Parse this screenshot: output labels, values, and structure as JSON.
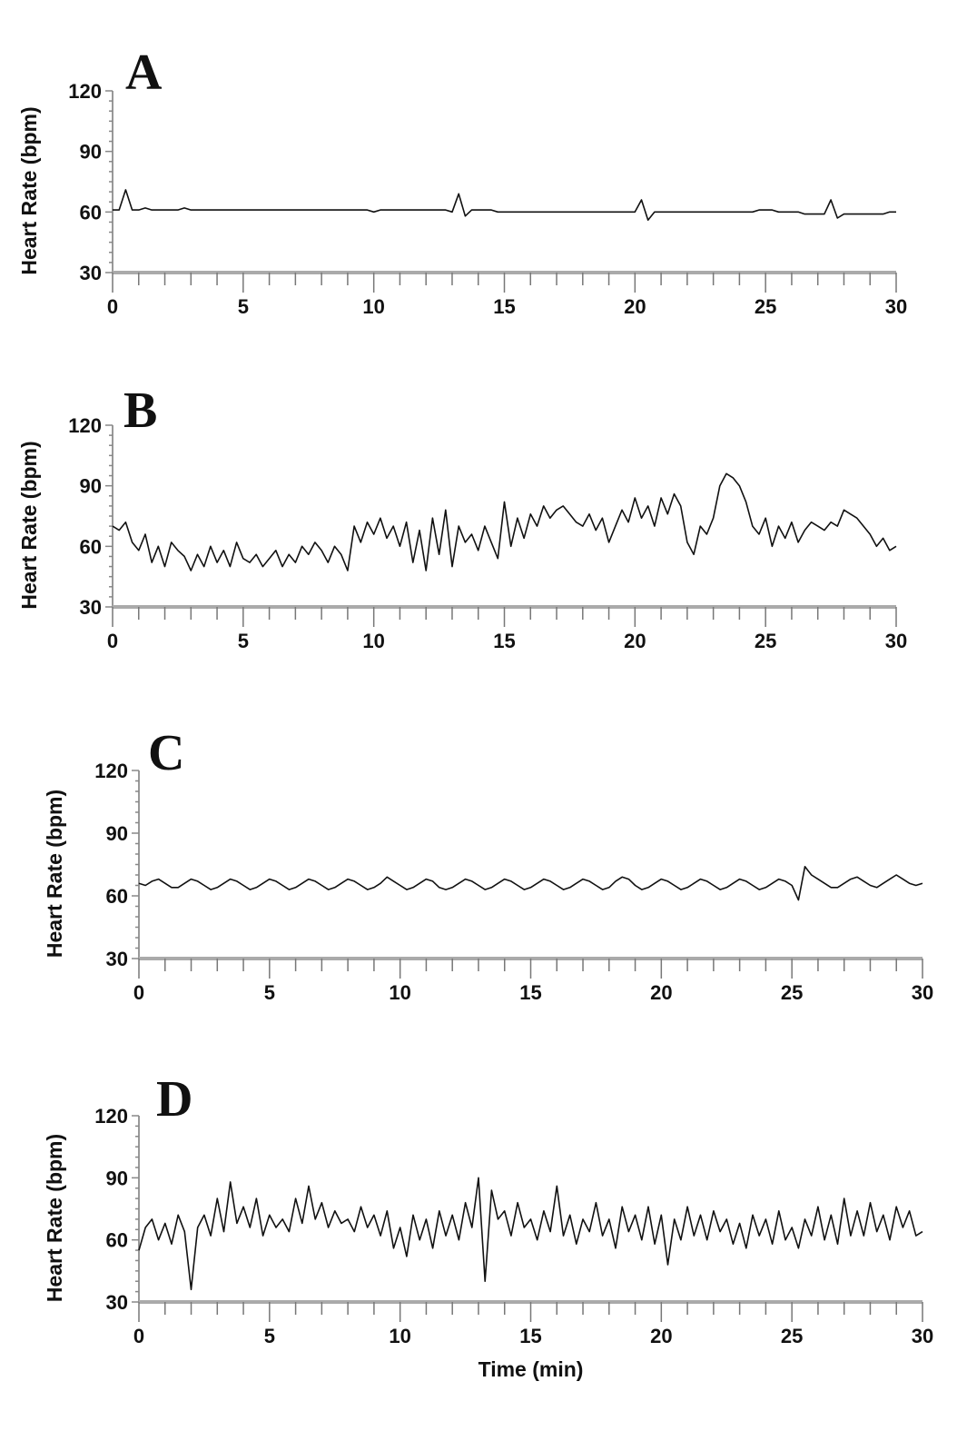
{
  "chart_data": [
    {
      "type": "line",
      "panel_label": "A",
      "ylabel": "Heart Rate (bpm)",
      "xlabel": "",
      "xlim": [
        0,
        30
      ],
      "ylim": [
        30,
        120
      ],
      "xticks": [
        "0",
        "5",
        "10",
        "15",
        "20",
        "25",
        "30"
      ],
      "yticks": [
        "30",
        "60",
        "90",
        "120"
      ],
      "x_start": 0,
      "x_step": 0.25,
      "values": [
        61,
        61,
        71,
        61,
        61,
        62,
        61,
        61,
        61,
        61,
        61,
        62,
        61,
        61,
        61,
        61,
        61,
        61,
        61,
        61,
        61,
        61,
        61,
        61,
        61,
        61,
        61,
        61,
        61,
        61,
        61,
        61,
        61,
        61,
        61,
        61,
        61,
        61,
        61,
        61,
        60,
        61,
        61,
        61,
        61,
        61,
        61,
        61,
        61,
        61,
        61,
        61,
        60,
        69,
        58,
        61,
        61,
        61,
        61,
        60,
        60,
        60,
        60,
        60,
        60,
        60,
        60,
        60,
        60,
        60,
        60,
        60,
        60,
        60,
        60,
        60,
        60,
        60,
        60,
        60,
        60,
        66,
        56,
        60,
        60,
        60,
        60,
        60,
        60,
        60,
        60,
        60,
        60,
        60,
        60,
        60,
        60,
        60,
        60,
        61,
        61,
        61,
        60,
        60,
        60,
        60,
        59,
        59,
        59,
        59,
        66,
        57,
        59,
        59,
        59,
        59,
        59,
        59,
        59,
        60,
        60
      ]
    },
    {
      "type": "line",
      "panel_label": "B",
      "ylabel": "Heart Rate (bpm)",
      "xlabel": "",
      "xlim": [
        0,
        30
      ],
      "ylim": [
        30,
        120
      ],
      "xticks": [
        "0",
        "5",
        "10",
        "15",
        "20",
        "25",
        "30"
      ],
      "yticks": [
        "30",
        "60",
        "90",
        "120"
      ],
      "x_start": 0,
      "x_step": 0.25,
      "values": [
        70,
        68,
        72,
        62,
        58,
        66,
        52,
        60,
        50,
        62,
        58,
        55,
        48,
        56,
        50,
        60,
        52,
        58,
        50,
        62,
        54,
        52,
        56,
        50,
        54,
        58,
        50,
        56,
        52,
        60,
        56,
        62,
        58,
        52,
        60,
        56,
        48,
        70,
        62,
        72,
        66,
        74,
        64,
        70,
        60,
        72,
        52,
        68,
        48,
        74,
        56,
        78,
        50,
        70,
        62,
        66,
        58,
        70,
        62,
        54,
        82,
        60,
        74,
        64,
        76,
        70,
        80,
        74,
        78,
        80,
        76,
        72,
        70,
        76,
        68,
        74,
        62,
        70,
        78,
        72,
        84,
        74,
        80,
        70,
        84,
        76,
        86,
        80,
        62,
        56,
        70,
        66,
        74,
        90,
        96,
        94,
        90,
        82,
        70,
        66,
        74,
        60,
        70,
        64,
        72,
        62,
        68,
        72,
        70,
        68,
        72,
        70,
        78,
        76,
        74,
        70,
        66,
        60,
        64,
        58,
        60
      ]
    },
    {
      "type": "line",
      "panel_label": "C",
      "ylabel": "Heart Rate (bpm)",
      "xlabel": "",
      "xlim": [
        0,
        30
      ],
      "ylim": [
        30,
        120
      ],
      "xticks": [
        "0",
        "5",
        "10",
        "15",
        "20",
        "25",
        "30"
      ],
      "yticks": [
        "30",
        "60",
        "90",
        "120"
      ],
      "x_start": 0,
      "x_step": 0.25,
      "values": [
        66,
        65,
        67,
        68,
        66,
        64,
        64,
        66,
        68,
        67,
        65,
        63,
        64,
        66,
        68,
        67,
        65,
        63,
        64,
        66,
        68,
        67,
        65,
        63,
        64,
        66,
        68,
        67,
        65,
        63,
        64,
        66,
        68,
        67,
        65,
        63,
        64,
        66,
        69,
        67,
        65,
        63,
        64,
        66,
        68,
        67,
        64,
        63,
        64,
        66,
        68,
        67,
        65,
        63,
        64,
        66,
        68,
        67,
        65,
        63,
        64,
        66,
        68,
        67,
        65,
        63,
        64,
        66,
        68,
        67,
        65,
        63,
        64,
        67,
        69,
        68,
        65,
        63,
        64,
        66,
        68,
        67,
        65,
        63,
        64,
        66,
        68,
        67,
        65,
        63,
        64,
        66,
        68,
        67,
        65,
        63,
        64,
        66,
        68,
        67,
        65,
        58,
        74,
        70,
        68,
        66,
        64,
        64,
        66,
        68,
        69,
        67,
        65,
        64,
        66,
        68,
        70,
        68,
        66,
        65,
        66
      ]
    },
    {
      "type": "line",
      "panel_label": "D",
      "ylabel": "Heart Rate (bpm)",
      "xlabel": "Time (min)",
      "xlim": [
        0,
        30
      ],
      "ylim": [
        30,
        120
      ],
      "xticks": [
        "0",
        "5",
        "10",
        "15",
        "20",
        "25",
        "30"
      ],
      "yticks": [
        "30",
        "60",
        "90",
        "120"
      ],
      "x_start": 0,
      "x_step": 0.25,
      "values": [
        55,
        66,
        70,
        60,
        68,
        58,
        72,
        64,
        36,
        66,
        72,
        62,
        80,
        64,
        88,
        68,
        76,
        66,
        80,
        62,
        72,
        66,
        70,
        64,
        80,
        68,
        86,
        70,
        78,
        66,
        74,
        68,
        70,
        64,
        76,
        66,
        72,
        62,
        74,
        56,
        66,
        52,
        72,
        60,
        70,
        56,
        74,
        62,
        72,
        60,
        78,
        66,
        90,
        40,
        84,
        70,
        74,
        62,
        78,
        66,
        70,
        60,
        74,
        64,
        86,
        62,
        72,
        58,
        70,
        64,
        78,
        62,
        70,
        56,
        76,
        64,
        72,
        60,
        76,
        58,
        72,
        48,
        70,
        60,
        76,
        62,
        72,
        60,
        74,
        64,
        70,
        58,
        68,
        56,
        72,
        62,
        70,
        58,
        74,
        60,
        66,
        56,
        70,
        62,
        76,
        60,
        72,
        58,
        80,
        62,
        74,
        62,
        78,
        64,
        72,
        60,
        76,
        66,
        74,
        62,
        64
      ]
    }
  ],
  "colors": {
    "line": "#111111",
    "axis": "#999999",
    "text": "#111111"
  }
}
